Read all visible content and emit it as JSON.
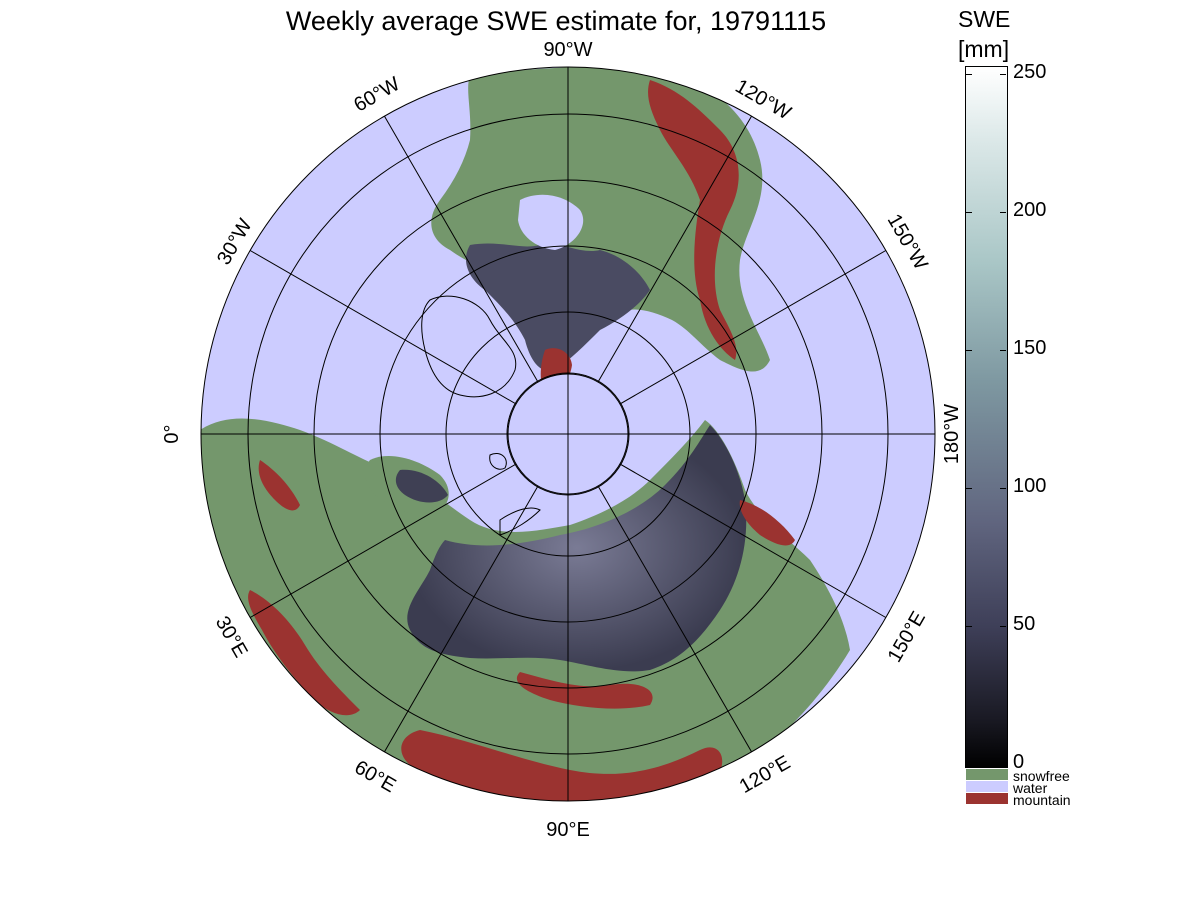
{
  "title": "Weekly average SWE estimate for, 19791115",
  "colorbar": {
    "title_line1": "SWE",
    "title_line2": "[mm]",
    "ticks": [
      "250",
      "200",
      "150",
      "100",
      "50",
      "0"
    ]
  },
  "categories": [
    {
      "label": "snowfree",
      "color": "#74976c"
    },
    {
      "label": "water",
      "color": "#ccccff"
    },
    {
      "label": "mountain",
      "color": "#9b3330"
    }
  ],
  "longitude_labels": {
    "top": "90°W",
    "nw": "60°W",
    "wnw": "30°W",
    "left": "0°",
    "sw": "30°E",
    "ssw": "60°E",
    "bottom": "90°E",
    "sse": "120°E",
    "se": "150°E",
    "right": "180°W",
    "ene": "150°W",
    "ne": "120°W"
  },
  "colors": {
    "water": "#ccccff",
    "land": "#74976c",
    "mountain": "#9b3330",
    "snow": "#5a5b72"
  }
}
